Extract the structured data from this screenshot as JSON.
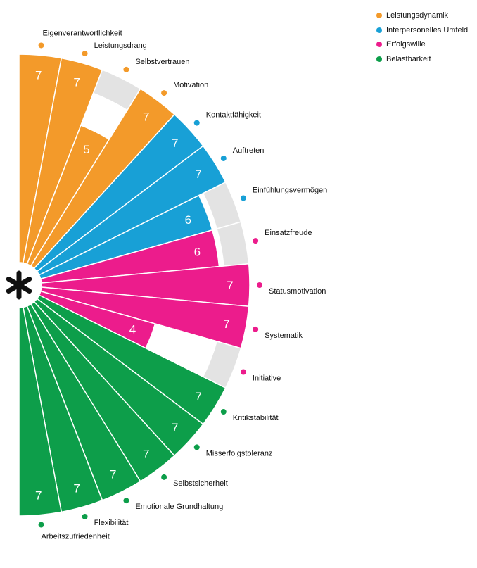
{
  "chart_data": {
    "type": "radial-bar",
    "max_value": 7,
    "center_icon": "asterisk-icon",
    "legend": [
      {
        "name": "Leistungsdynamik",
        "color": "#f39a2a"
      },
      {
        "name": "Interpersonelles Umfeld",
        "color": "#18a0d6"
      },
      {
        "name": "Erfolgswille",
        "color": "#ec1c8c"
      },
      {
        "name": "Belastbarkeit",
        "color": "#0d9e4a"
      }
    ],
    "categories": [
      {
        "label": "Eigenverantwortlichkeit",
        "group": "Leistungsdynamik",
        "value": 7
      },
      {
        "label": "Leistungsdrang",
        "group": "Leistungsdynamik",
        "value": 7
      },
      {
        "label": "Selbstvertrauen",
        "group": "Leistungsdynamik",
        "value": 5
      },
      {
        "label": "Motivation",
        "group": "Leistungsdynamik",
        "value": 7
      },
      {
        "label": "Kontaktfähigkeit",
        "group": "Interpersonelles Umfeld",
        "value": 7
      },
      {
        "label": "Auftreten",
        "group": "Interpersonelles Umfeld",
        "value": 7
      },
      {
        "label": "Einfühlungsvermögen",
        "group": "Interpersonelles Umfeld",
        "value": 6
      },
      {
        "label": "Einsatzfreude",
        "group": "Erfolgswille",
        "value": 6
      },
      {
        "label": "Statusmotivation",
        "group": "Erfolgswille",
        "value": 7
      },
      {
        "label": "Systematik",
        "group": "Erfolgswille",
        "value": 7
      },
      {
        "label": "Initiative",
        "group": "Erfolgswille",
        "value": 4
      },
      {
        "label": "Kritikstabilität",
        "group": "Belastbarkeit",
        "value": 7
      },
      {
        "label": "Misserfolgstoleranz",
        "group": "Belastbarkeit",
        "value": 7
      },
      {
        "label": "Selbstsicherheit",
        "group": "Belastbarkeit",
        "value": 7
      },
      {
        "label": "Emotionale Grundhaltung",
        "group": "Belastbarkeit",
        "value": 7
      },
      {
        "label": "Flexibilität",
        "group": "Belastbarkeit",
        "value": 7
      },
      {
        "label": "Arbeitszufriedenheit",
        "group": "Belastbarkeit",
        "value": 7
      }
    ]
  }
}
